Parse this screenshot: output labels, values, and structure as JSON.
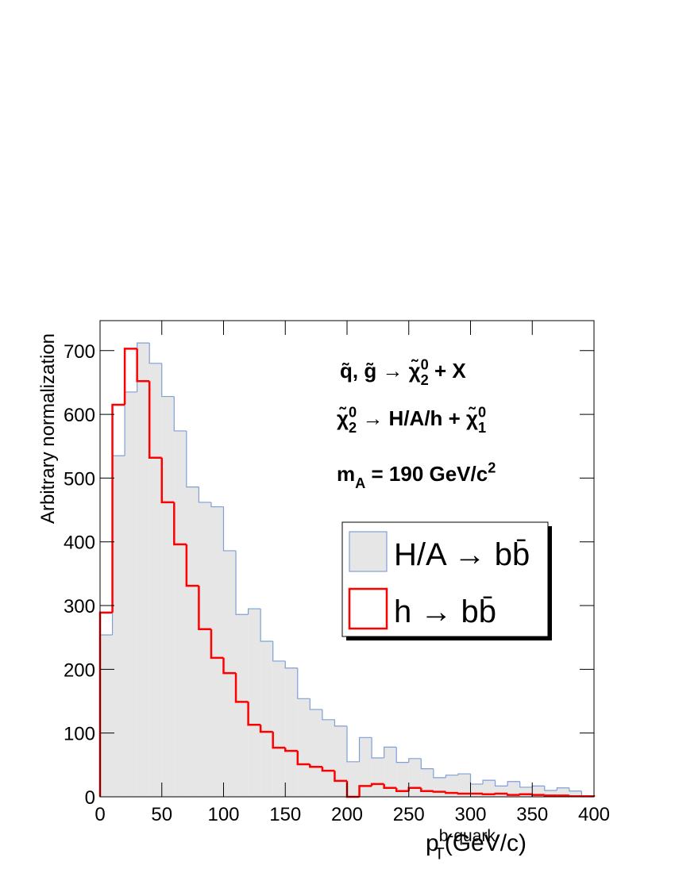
{
  "chart_data": {
    "type": "histogram",
    "bins": [
      0,
      10,
      20,
      30,
      40,
      50,
      60,
      70,
      80,
      90,
      100,
      110,
      120,
      130,
      140,
      150,
      160,
      170,
      180,
      190,
      200,
      210,
      220,
      230,
      240,
      250,
      260,
      270,
      280,
      290,
      300,
      310,
      320,
      330,
      340,
      350,
      360,
      370,
      380,
      390,
      400
    ],
    "series": [
      {
        "name": "H/A → bb̄",
        "color": "#e6e6e6",
        "edge": "#7f9fd6",
        "values": [
          254,
          535,
          635,
          712,
          680,
          628,
          574,
          486,
          462,
          455,
          386,
          286,
          295,
          244,
          213,
          202,
          154,
          137,
          121,
          111,
          55,
          93,
          61,
          78,
          54,
          60,
          44,
          30,
          34,
          36,
          20,
          26,
          17,
          24,
          15,
          17,
          10,
          14,
          9,
          0
        ]
      },
      {
        "name": "h → bb̄",
        "color": "none",
        "edge": "#ff0000",
        "values": [
          289,
          615,
          703,
          652,
          532,
          462,
          396,
          331,
          263,
          218,
          194,
          149,
          113,
          102,
          77,
          72,
          51,
          47,
          41,
          25,
          0,
          17,
          20,
          14,
          9,
          14,
          9,
          8,
          6,
          5,
          5,
          4,
          5,
          3,
          4,
          3,
          2,
          2,
          1,
          1
        ]
      }
    ],
    "xlim": [
      0,
      400
    ],
    "ylim": [
      0,
      747
    ],
    "xticks": [
      0,
      50,
      100,
      150,
      200,
      250,
      300,
      350,
      400
    ],
    "yticks": [
      0,
      100,
      200,
      300,
      400,
      500,
      600,
      700
    ],
    "ylabel": "Arbitrary normalization",
    "xlabel": [
      {
        "text": "p"
      },
      {
        "text": "b-quark",
        "pos": "sup"
      },
      {
        "text": "T",
        "pos": "sub"
      },
      {
        "text": "(GeV/c)"
      }
    ],
    "annotations": [
      [
        {
          "text": "q̃, g̃ → χ̃"
        },
        {
          "text": "0",
          "pos": "sup"
        },
        {
          "text": "2",
          "pos": "sub"
        },
        {
          "text": " + X"
        }
      ],
      [
        {
          "text": "χ̃"
        },
        {
          "text": "0",
          "pos": "sup"
        },
        {
          "text": "2",
          "pos": "sub"
        },
        {
          "text": " → H/A/h + χ̃"
        },
        {
          "text": "0",
          "pos": "sup"
        },
        {
          "text": "1",
          "pos": "sub"
        }
      ],
      [
        {
          "text": "m"
        },
        {
          "text": "A",
          "pos": "sub"
        },
        {
          "text": " = 190 GeV/c"
        },
        {
          "text": "2",
          "pos": "sup"
        }
      ]
    ]
  }
}
